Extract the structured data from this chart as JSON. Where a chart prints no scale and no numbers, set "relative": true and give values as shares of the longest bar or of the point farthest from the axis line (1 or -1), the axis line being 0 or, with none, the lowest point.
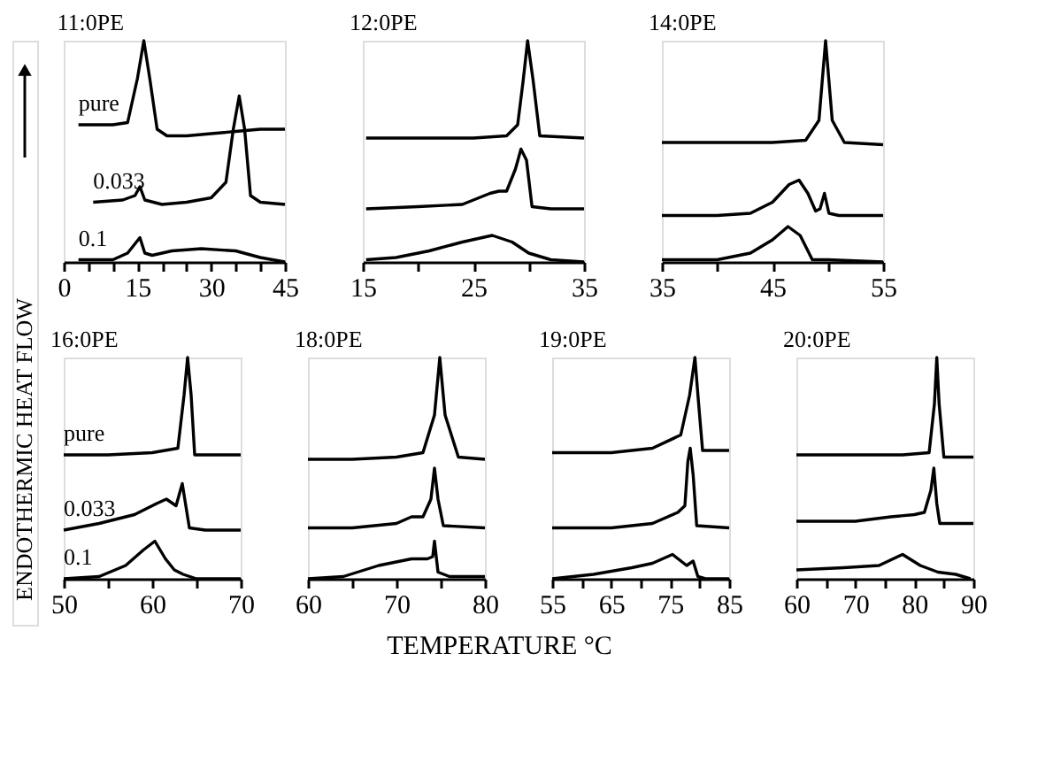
{
  "chart_data": [
    {
      "type": "line",
      "title": "11:0PE",
      "ylabel": "ENDOTHERMIC HEAT FLOW",
      "relative": true,
      "grid": false,
      "tick_labels": "x",
      "xlim": [
        0,
        45
      ],
      "xticks": [
        0,
        {
          "value": 5,
          "label": null
        },
        {
          "value": 10,
          "label": null
        },
        15,
        {
          "value": 20,
          "label": null
        },
        {
          "value": 25,
          "label": null
        },
        30,
        {
          "value": 35,
          "label": null
        },
        {
          "value": 40,
          "label": null
        },
        45
      ],
      "series": [
        {
          "name": "pure",
          "color": "#000000",
          "x": [
            3,
            10,
            13,
            15,
            16.3,
            17.5,
            19,
            21,
            25,
            30,
            35,
            40,
            45
          ],
          "values": [
            0.62,
            0.62,
            0.63,
            0.83,
            1,
            0.83,
            0.6,
            0.57,
            0.57,
            0.58,
            0.59,
            0.6,
            0.6
          ]
        },
        {
          "name": "0.033",
          "color": "#000000",
          "x": [
            6,
            12,
            14.5,
            15.5,
            16.5,
            20,
            25,
            30,
            33,
            34.5,
            35.7,
            36.8,
            38,
            40,
            45
          ],
          "values": [
            0.27,
            0.28,
            0.3,
            0.34,
            0.28,
            0.26,
            0.27,
            0.29,
            0.36,
            0.6,
            0.75,
            0.6,
            0.3,
            0.27,
            0.26
          ]
        },
        {
          "name": "0.1",
          "color": "#000000",
          "x": [
            3,
            10,
            13,
            15.5,
            16.5,
            18,
            22,
            28,
            35,
            40,
            45
          ],
          "values": [
            0.01,
            0.01,
            0.04,
            0.11,
            0.04,
            0.03,
            0.05,
            0.06,
            0.05,
            0.02,
            0
          ]
        }
      ]
    },
    {
      "type": "line",
      "title": "12:0PE",
      "relative": true,
      "grid": false,
      "tick_labels": "x",
      "xlim": [
        15,
        35
      ],
      "xticks": [
        15,
        {
          "value": 20,
          "label": null
        },
        25,
        {
          "value": 30,
          "label": null
        },
        35
      ],
      "series": [
        {
          "color": "#000000",
          "x": [
            15.3,
            20,
            25,
            28,
            29,
            29.5,
            29.9,
            30.4,
            31,
            35
          ],
          "values": [
            0.56,
            0.56,
            0.56,
            0.57,
            0.62,
            0.82,
            1,
            0.82,
            0.57,
            0.56
          ]
        },
        {
          "color": "#000000",
          "x": [
            15.3,
            20,
            24,
            26.5,
            27.3,
            28,
            28.8,
            29.3,
            29.8,
            30.3,
            32,
            35
          ],
          "values": [
            0.24,
            0.25,
            0.26,
            0.31,
            0.32,
            0.32,
            0.42,
            0.51,
            0.46,
            0.25,
            0.24,
            0.24
          ]
        },
        {
          "color": "#000000",
          "x": [
            15.3,
            18,
            21,
            24,
            26.7,
            28.5,
            30,
            32,
            35
          ],
          "values": [
            0.01,
            0.02,
            0.05,
            0.09,
            0.12,
            0.09,
            0.04,
            0.01,
            0
          ]
        }
      ]
    },
    {
      "type": "line",
      "title": "14:0PE",
      "relative": true,
      "grid": false,
      "tick_labels": "x",
      "xlim": [
        35,
        55
      ],
      "xticks": [
        35,
        {
          "value": 40,
          "label": null
        },
        45,
        {
          "value": 50,
          "label": null
        },
        55
      ],
      "series": [
        {
          "color": "#000000",
          "x": [
            35,
            40,
            45,
            48,
            49.2,
            49.8,
            50.4,
            51.5,
            55
          ],
          "values": [
            0.54,
            0.54,
            0.54,
            0.55,
            0.64,
            1,
            0.64,
            0.54,
            0.53
          ]
        },
        {
          "color": "#000000",
          "x": [
            35,
            40,
            43,
            45,
            46.5,
            47.4,
            48.2,
            48.9,
            49.3,
            49.7,
            50.1,
            51,
            55
          ],
          "values": [
            0.21,
            0.21,
            0.22,
            0.27,
            0.35,
            0.37,
            0.31,
            0.23,
            0.24,
            0.31,
            0.22,
            0.21,
            0.21
          ]
        },
        {
          "color": "#000000",
          "x": [
            35,
            40,
            43,
            45,
            46.4,
            47.5,
            48.6,
            50,
            55
          ],
          "values": [
            0.01,
            0.01,
            0.04,
            0.1,
            0.16,
            0.12,
            0.01,
            0.01,
            0
          ]
        }
      ]
    },
    {
      "type": "line",
      "title": "16:0PE",
      "xlabel": "TEMPERATURE °C",
      "relative": true,
      "grid": false,
      "tick_labels": "x",
      "xlim": [
        50,
        70
      ],
      "xticks": [
        50,
        {
          "value": 55,
          "label": null
        },
        60,
        {
          "value": 65,
          "label": null
        },
        70
      ],
      "series": [
        {
          "name": "pure",
          "color": "#000000",
          "x": [
            50,
            55,
            60,
            62.9,
            63.6,
            64,
            64.4,
            64.8,
            70
          ],
          "values": [
            0.56,
            0.56,
            0.57,
            0.59,
            0.83,
            1,
            0.83,
            0.56,
            0.56
          ]
        },
        {
          "name": "0.033",
          "color": "#000000",
          "x": [
            50,
            54,
            58,
            60.5,
            61.6,
            62.7,
            63.4,
            63.8,
            64.2,
            66,
            70
          ],
          "values": [
            0.22,
            0.25,
            0.29,
            0.34,
            0.36,
            0.33,
            0.43,
            0.33,
            0.23,
            0.22,
            0.22
          ]
        },
        {
          "name": "0.1",
          "color": "#000000",
          "x": [
            50,
            54,
            57,
            59,
            60.3,
            61.5,
            62.5,
            63.5,
            65,
            70
          ],
          "values": [
            0,
            0.01,
            0.06,
            0.13,
            0.17,
            0.09,
            0.04,
            0.02,
            0,
            0
          ]
        }
      ]
    },
    {
      "type": "line",
      "title": "18:0PE",
      "relative": true,
      "grid": false,
      "tick_labels": "x",
      "xlim": [
        60,
        80
      ],
      "xticks": [
        60,
        {
          "value": 65,
          "label": null
        },
        70,
        {
          "value": 75,
          "label": null
        },
        80
      ],
      "series": [
        {
          "color": "#000000",
          "x": [
            60,
            65,
            70,
            73,
            74.3,
            74.9,
            75.5,
            77,
            80
          ],
          "values": [
            0.54,
            0.54,
            0.55,
            0.57,
            0.74,
            1,
            0.74,
            0.55,
            0.54
          ]
        },
        {
          "color": "#000000",
          "x": [
            60,
            65,
            70,
            71.7,
            73,
            73.9,
            74.3,
            74.7,
            75.3,
            80
          ],
          "values": [
            0.23,
            0.23,
            0.25,
            0.28,
            0.28,
            0.36,
            0.5,
            0.36,
            0.24,
            0.23
          ]
        },
        {
          "color": "#000000",
          "x": [
            60,
            64,
            68,
            71.7,
            73.5,
            74.1,
            74.3,
            74.7,
            76,
            80
          ],
          "values": [
            0,
            0.01,
            0.06,
            0.09,
            0.09,
            0.1,
            0.17,
            0.03,
            0.01,
            0.01
          ]
        }
      ]
    },
    {
      "type": "line",
      "title": "19:0PE",
      "relative": true,
      "grid": false,
      "tick_labels": "x",
      "xlim": [
        55,
        85
      ],
      "xticks": [
        55,
        {
          "value": 60,
          "label": null
        },
        65,
        {
          "value": 70,
          "label": null
        },
        75,
        {
          "value": 80,
          "label": null
        },
        85
      ],
      "series": [
        {
          "color": "#000000",
          "x": [
            55,
            65,
            72,
            76.8,
            78.3,
            79.2,
            79.8,
            80.5,
            85
          ],
          "values": [
            0.57,
            0.57,
            0.59,
            0.65,
            0.83,
            1,
            0.8,
            0.58,
            0.58
          ]
        },
        {
          "color": "#000000",
          "x": [
            55,
            65,
            72,
            76.3,
            77.5,
            78,
            78.4,
            78.9,
            79.5,
            85
          ],
          "values": [
            0.23,
            0.23,
            0.25,
            0.3,
            0.33,
            0.53,
            0.59,
            0.47,
            0.24,
            0.23
          ]
        },
        {
          "color": "#000000",
          "x": [
            55,
            62,
            68.5,
            72,
            75.4,
            77.8,
            78.9,
            79.7,
            81,
            85
          ],
          "values": [
            0,
            0.02,
            0.05,
            0.07,
            0.11,
            0.06,
            0.08,
            0.01,
            0,
            0
          ]
        }
      ]
    },
    {
      "type": "line",
      "title": "20:0PE",
      "relative": true,
      "grid": false,
      "tick_labels": "x",
      "xlim": [
        60,
        90
      ],
      "xticks": [
        60,
        {
          "value": 65,
          "label": null
        },
        70,
        {
          "value": 75,
          "label": null
        },
        80,
        {
          "value": 85,
          "label": null
        },
        90
      ],
      "series": [
        {
          "color": "#000000",
          "x": [
            60,
            70,
            78,
            82.5,
            83.4,
            83.8,
            84.2,
            85,
            90
          ],
          "values": [
            0.56,
            0.56,
            0.56,
            0.57,
            0.79,
            1,
            0.79,
            0.55,
            0.55
          ]
        },
        {
          "color": "#000000",
          "x": [
            60,
            70,
            76,
            80,
            81.7,
            82.8,
            83.3,
            83.8,
            84.3,
            90
          ],
          "values": [
            0.26,
            0.26,
            0.28,
            0.29,
            0.3,
            0.4,
            0.5,
            0.34,
            0.25,
            0.25
          ]
        },
        {
          "color": "#000000",
          "x": [
            60,
            68,
            74,
            78,
            81,
            84,
            87,
            89.5
          ],
          "values": [
            0.04,
            0.05,
            0.06,
            0.11,
            0.06,
            0.03,
            0.02,
            0
          ]
        }
      ]
    }
  ]
}
